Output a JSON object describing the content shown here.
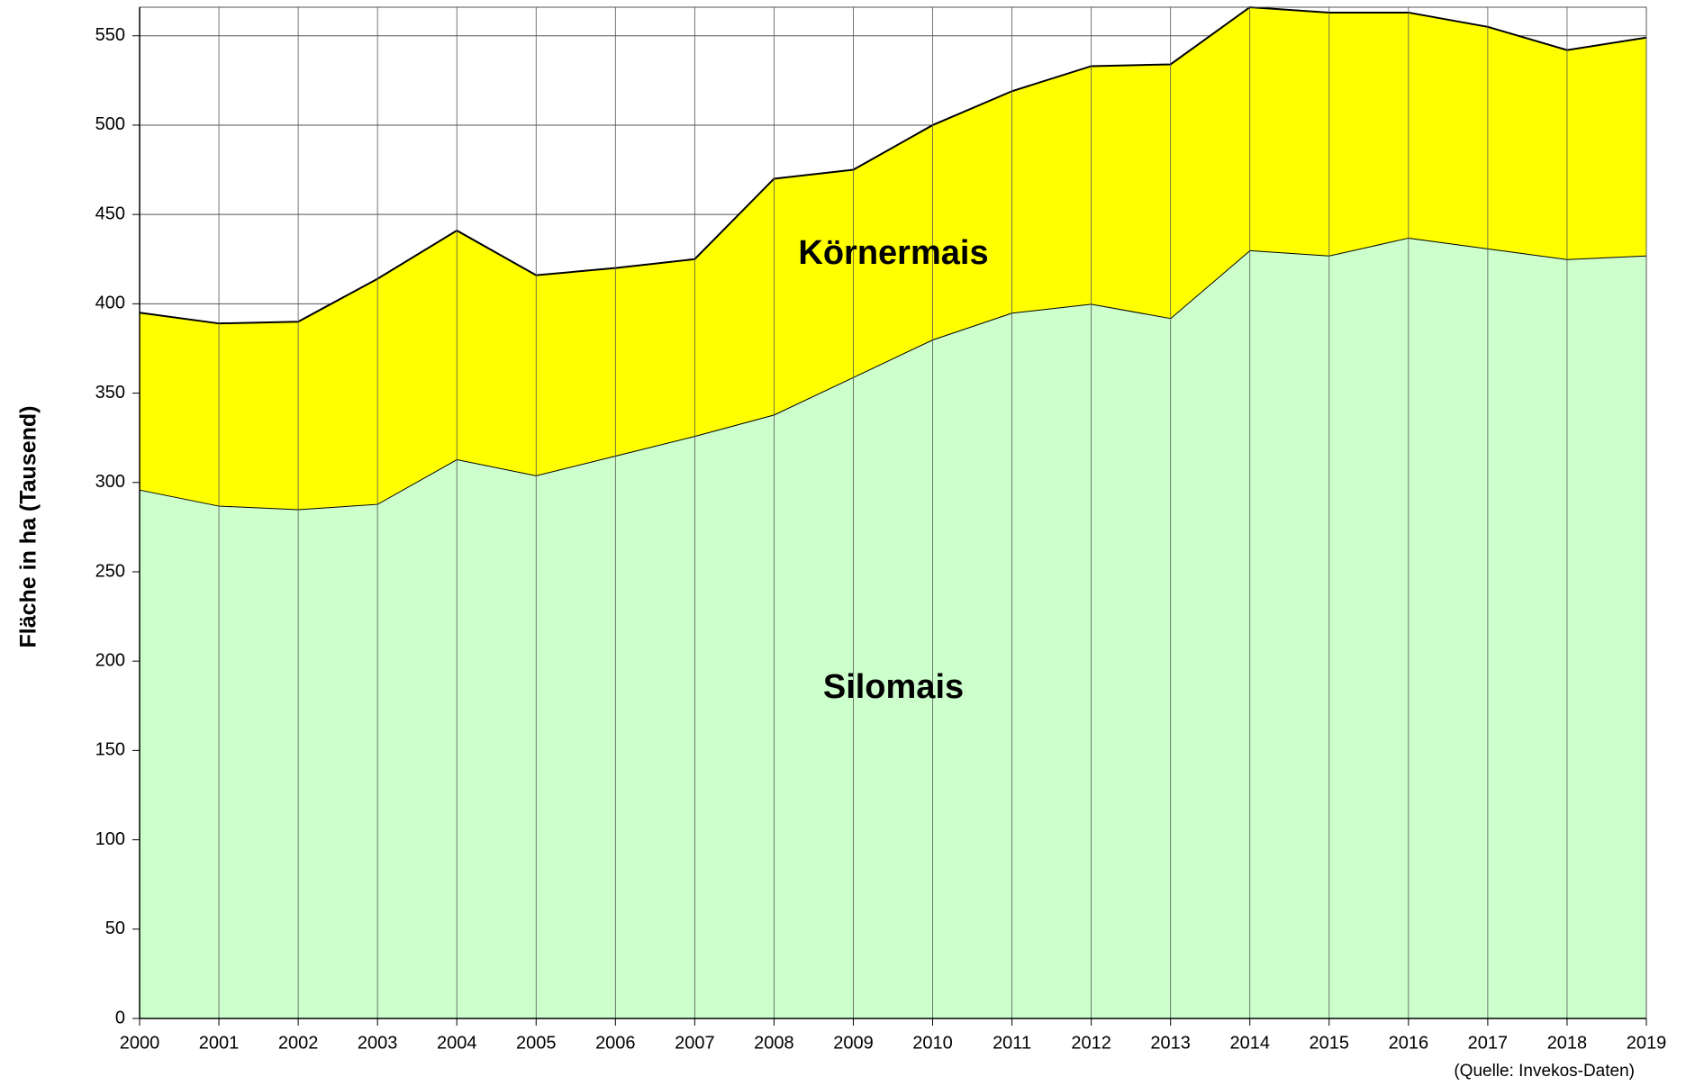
{
  "chart_data": {
    "type": "stacked_area",
    "y_axis_label": "Fläche in ha (Tausend)",
    "annotation": "(Quelle: Invekos-Daten)",
    "categories": [
      "2000",
      "2001",
      "2002",
      "2003",
      "2004",
      "2005",
      "2006",
      "2007",
      "2008",
      "2009",
      "2010",
      "2011",
      "2012",
      "2013",
      "2014",
      "2015",
      "2016",
      "2017",
      "2018",
      "2019"
    ],
    "series": [
      {
        "name": "Silomais",
        "color": "#ccffcc",
        "values": [
          296,
          287,
          285,
          288,
          313,
          304,
          315,
          326,
          338,
          359,
          380,
          395,
          400,
          392,
          430,
          427,
          437,
          431,
          425,
          427
        ]
      },
      {
        "name": "Körnermais",
        "color": "#ffff00",
        "values": [
          99,
          102,
          105,
          126,
          128,
          112,
          105,
          99,
          132,
          116,
          120,
          124,
          133,
          142,
          136,
          136,
          126,
          124,
          117,
          122
        ]
      }
    ],
    "ylim": [
      0,
      566
    ],
    "yticks": [
      0,
      50,
      100,
      150,
      200,
      250,
      300,
      350,
      400,
      450,
      500,
      550
    ],
    "grid": true
  }
}
